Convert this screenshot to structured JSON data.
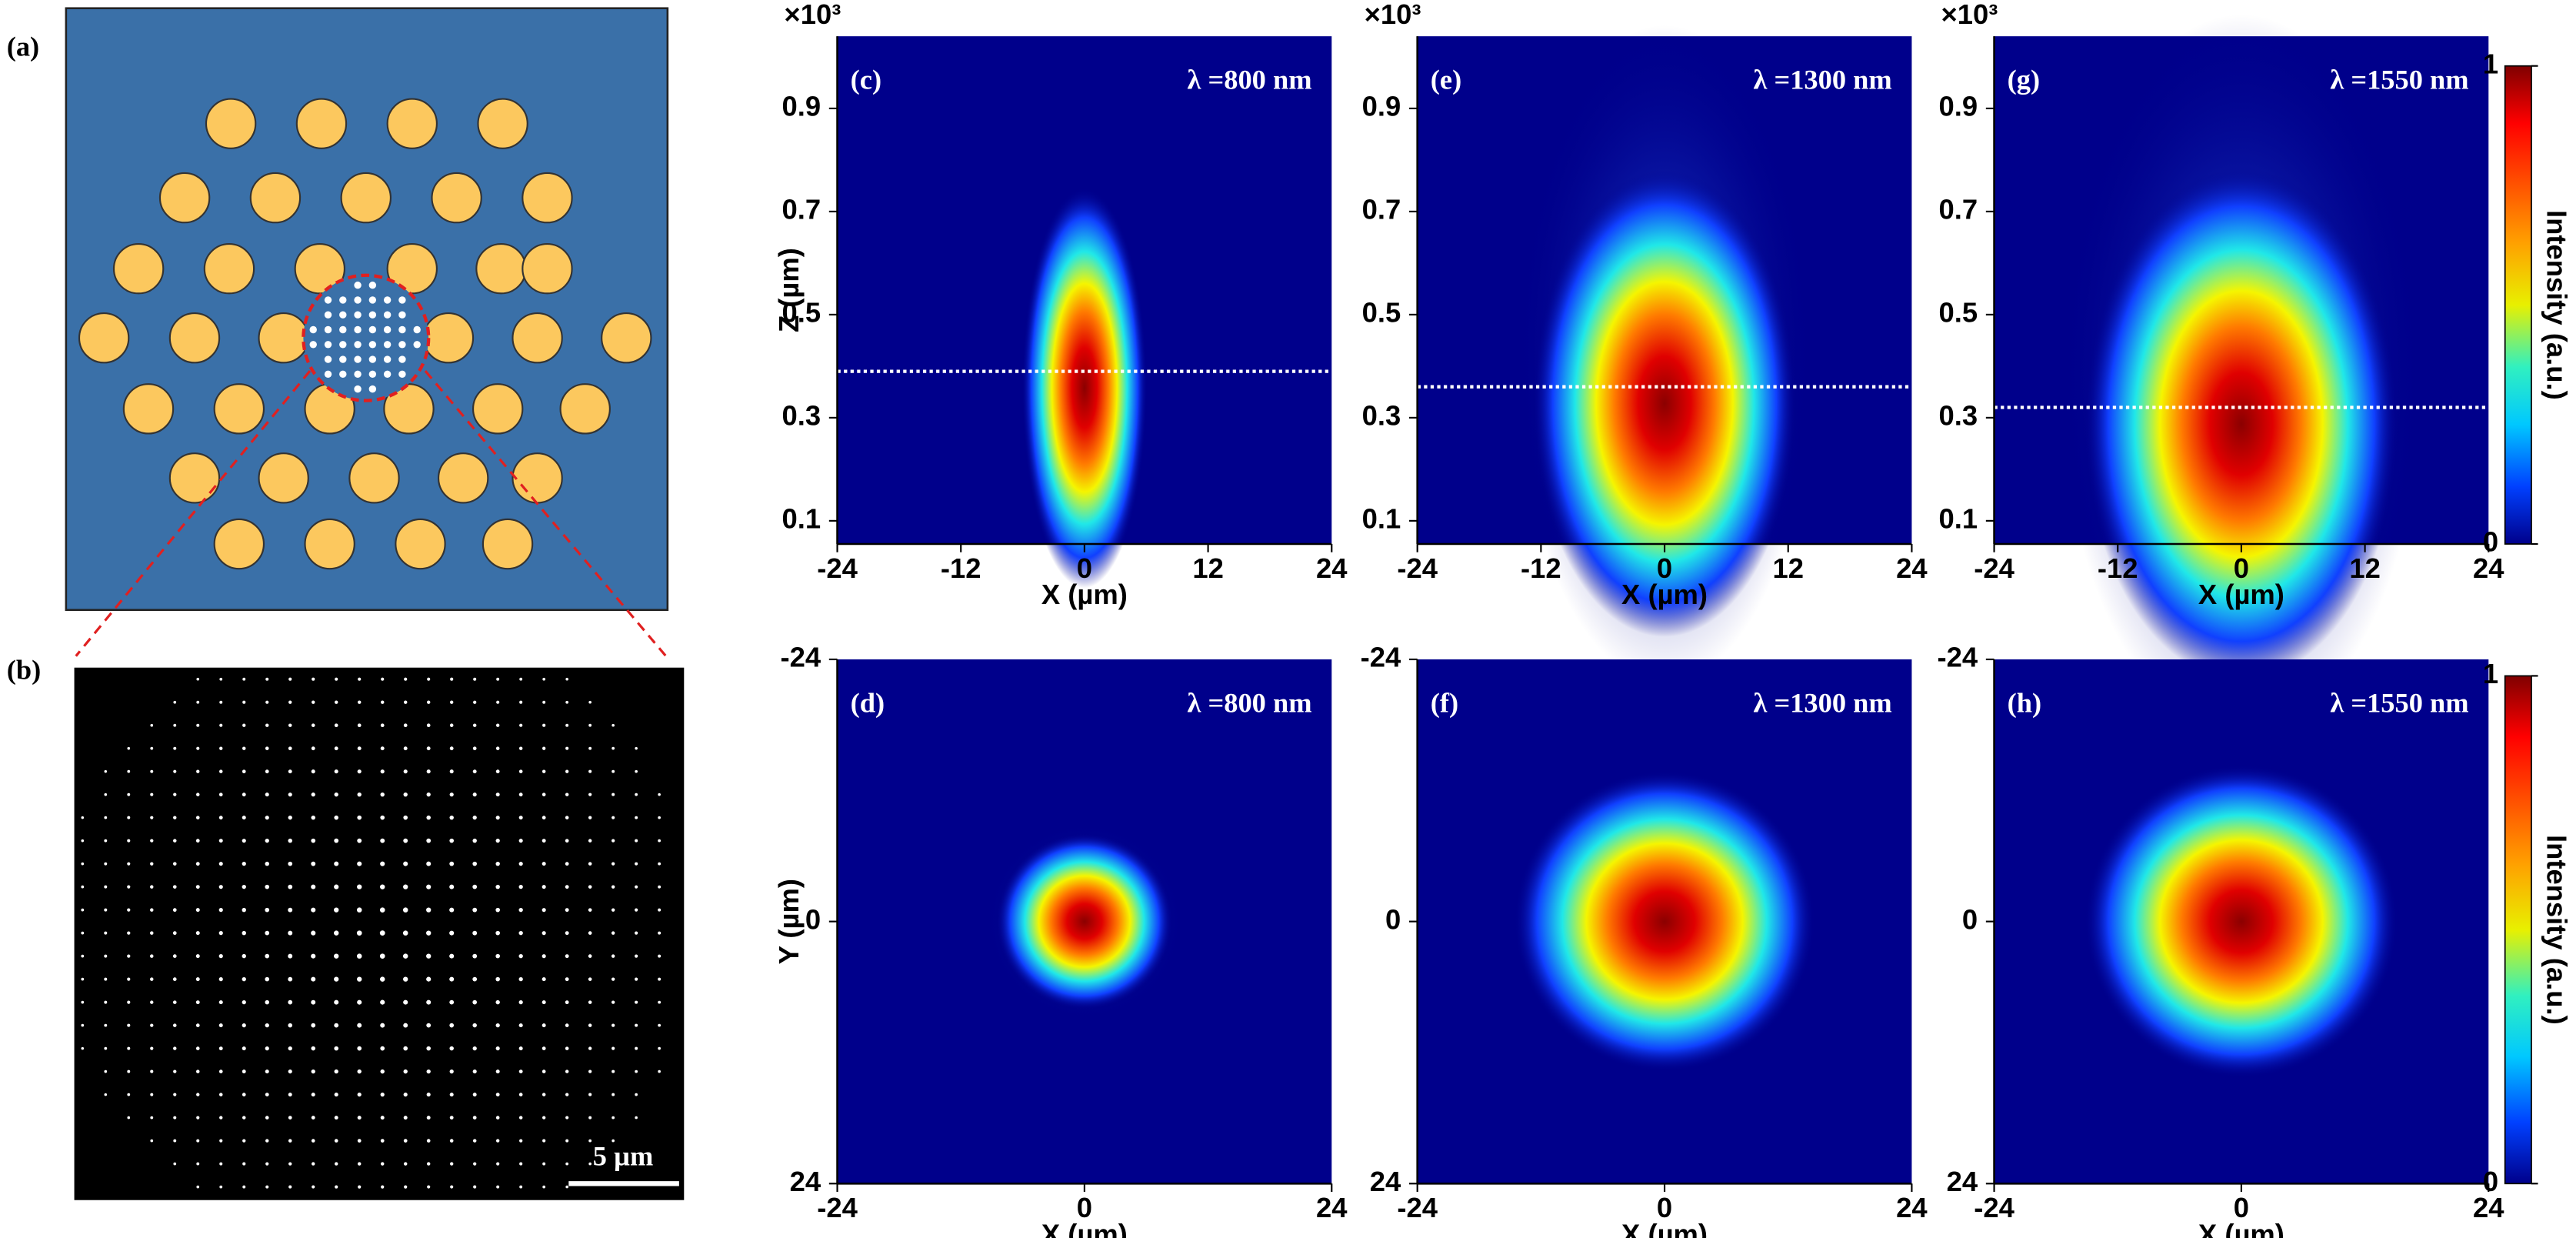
{
  "figure": {
    "panel_labels": [
      "(a)",
      "(b)"
    ],
    "scale_bar": "5 µm"
  },
  "chart_data": [
    {
      "type": "heatmap",
      "panel": "(c)",
      "annotation": "λ =800 nm",
      "xlabel": "X (µm)",
      "ylabel": "Z (µm)",
      "y_multiplier": "×10³",
      "xlim": [
        -24,
        24
      ],
      "xticks": [
        -24,
        -12,
        0,
        12,
        24
      ],
      "ylim": [
        0.055,
        1.04
      ],
      "yticks": [
        0.1,
        0.3,
        0.5,
        0.7,
        0.9
      ],
      "focus_z": 0.39
    },
    {
      "type": "heatmap",
      "panel": "(e)",
      "annotation": "λ =1300 nm",
      "xlabel": "X (µm)",
      "y_multiplier": "×10³",
      "xlim": [
        -24,
        24
      ],
      "xticks": [
        -24,
        -12,
        0,
        12,
        24
      ],
      "ylim": [
        0.055,
        1.04
      ],
      "yticks": [
        0.1,
        0.3,
        0.5,
        0.7,
        0.9
      ],
      "focus_z": 0.36
    },
    {
      "type": "heatmap",
      "panel": "(g)",
      "annotation": "λ =1550 nm",
      "xlabel": "X (µm)",
      "y_multiplier": "×10³",
      "xlim": [
        -24,
        24
      ],
      "xticks": [
        -24,
        -12,
        0,
        12,
        24
      ],
      "ylim": [
        0.055,
        1.04
      ],
      "yticks": [
        0.1,
        0.3,
        0.5,
        0.7,
        0.9
      ],
      "focus_z": 0.32
    },
    {
      "type": "heatmap",
      "panel": "(d)",
      "annotation": "λ =800 nm",
      "xlabel": "X (µm)",
      "ylabel": "Y (µm)",
      "xlim": [
        -24,
        24
      ],
      "xticks": [
        -24,
        0,
        24
      ],
      "ylim": [
        24,
        -24
      ],
      "yticks": [
        -24,
        0,
        24
      ]
    },
    {
      "type": "heatmap",
      "panel": "(f)",
      "annotation": "λ =1300 nm",
      "xlabel": "X (µm)",
      "xlim": [
        -24,
        24
      ],
      "xticks": [
        -24,
        0,
        24
      ],
      "ylim": [
        24,
        -24
      ],
      "yticks": [
        -24,
        0,
        24
      ]
    },
    {
      "type": "heatmap",
      "panel": "(h)",
      "annotation": "λ =1550 nm",
      "xlabel": "X (µm)",
      "xlim": [
        -24,
        24
      ],
      "xticks": [
        -24,
        0,
        24
      ],
      "ylim": [
        24,
        -24
      ],
      "yticks": [
        -24,
        0,
        24
      ]
    }
  ],
  "colorbars": [
    {
      "label": "Intensity (a.u.)",
      "ticks": [
        0,
        1
      ]
    },
    {
      "label": "Intensity (a.u.)",
      "ticks": [
        0,
        1
      ]
    }
  ]
}
